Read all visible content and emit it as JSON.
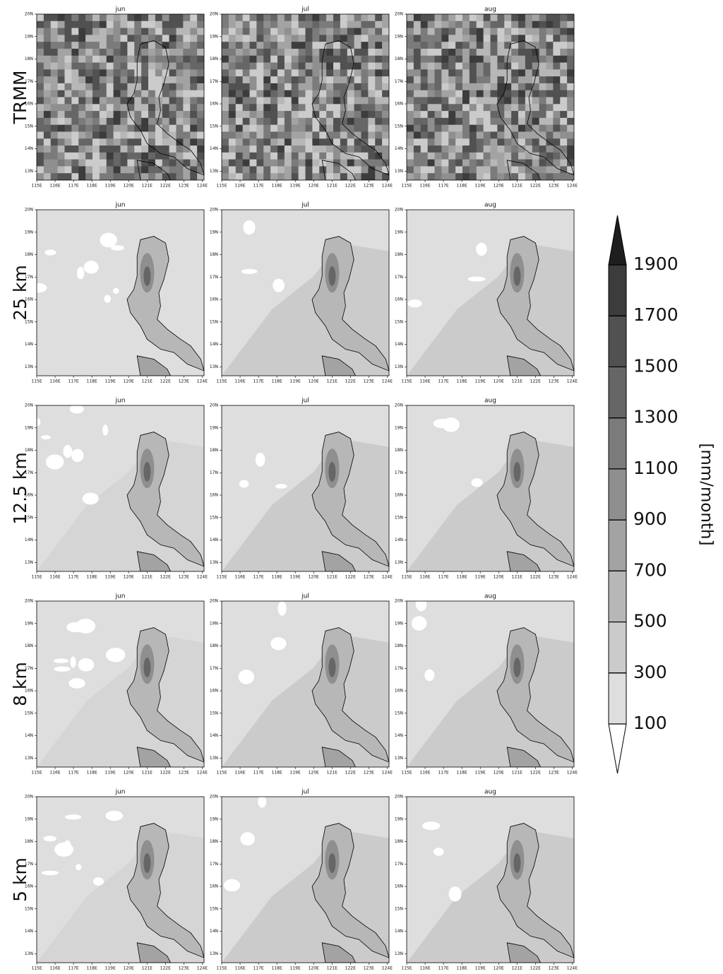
{
  "rows": [
    {
      "label": "TRMM"
    },
    {
      "label": "25 km"
    },
    {
      "label": "12.5 km"
    },
    {
      "label": "8 km"
    },
    {
      "label": "5 km"
    }
  ],
  "columns": [
    "jun",
    "jul",
    "aug"
  ],
  "lon_ticks": [
    {
      "value": 115,
      "label": "115E"
    },
    {
      "value": 116,
      "label": "116E"
    },
    {
      "value": 117,
      "label": "117E"
    },
    {
      "value": 118,
      "label": "118E"
    },
    {
      "value": 119,
      "label": "119E"
    },
    {
      "value": 120,
      "label": "120E"
    },
    {
      "value": 121,
      "label": "121E"
    },
    {
      "value": 122,
      "label": "122E"
    },
    {
      "value": 123,
      "label": "123E"
    },
    {
      "value": 124,
      "label": "124E"
    }
  ],
  "lat_ticks": [
    {
      "value": 13,
      "label": "13N"
    },
    {
      "value": 14,
      "label": "14N"
    },
    {
      "value": 15,
      "label": "15N"
    },
    {
      "value": 16,
      "label": "16N"
    },
    {
      "value": 17,
      "label": "17N"
    },
    {
      "value": 18,
      "label": "18N"
    },
    {
      "value": 19,
      "label": "19N"
    },
    {
      "value": 20,
      "label": "20N"
    }
  ],
  "colorbar": {
    "levels": [
      100,
      300,
      500,
      700,
      900,
      1100,
      1300,
      1500,
      1700,
      1900
    ],
    "label": "[mm/month]",
    "colors": [
      "#ffffff",
      "#dedede",
      "#cbcbcb",
      "#b7b7b7",
      "#a3a3a3",
      "#8f8f8f",
      "#7b7b7b",
      "#666666",
      "#515151",
      "#3c3c3c",
      "#1e1e1e"
    ]
  }
}
